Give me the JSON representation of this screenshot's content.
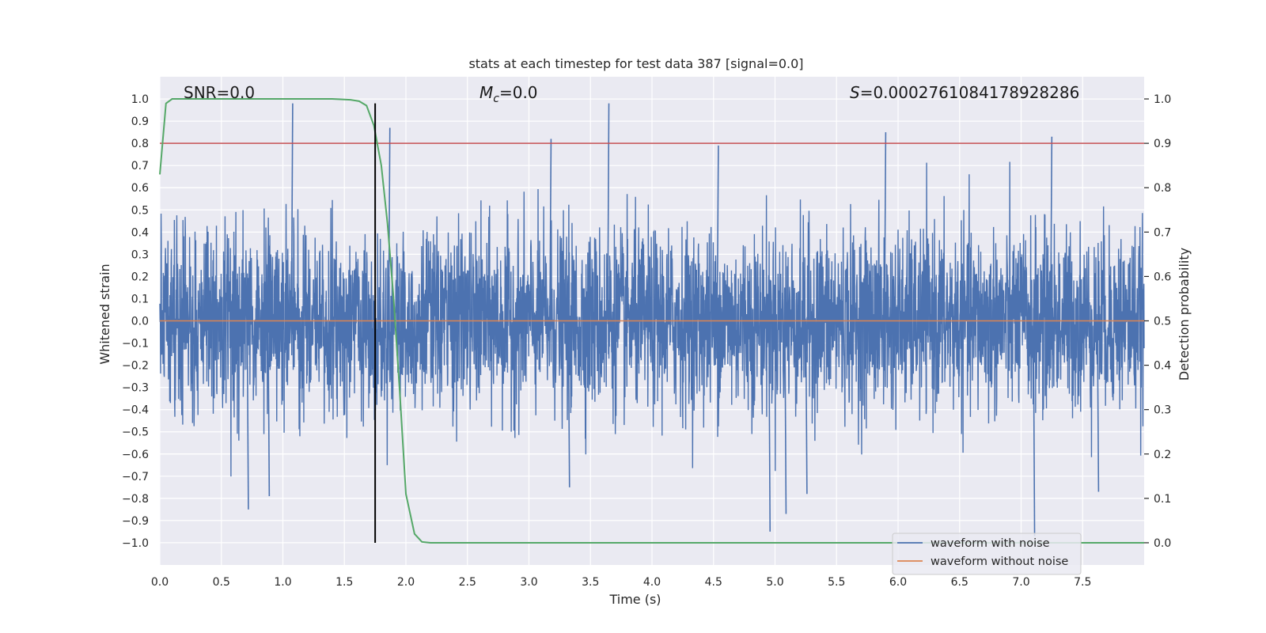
{
  "chart_data": {
    "type": "line",
    "title": "stats at each timestep for test data 387 [signal=0.0]",
    "xlabel": "Time (s)",
    "ylabel": "Whitened strain",
    "y2label": "Detection probability",
    "xlim": [
      0.0,
      8.0
    ],
    "ylim": [
      -1.1,
      1.1
    ],
    "y2lim": [
      -0.05,
      1.05
    ],
    "x_ticks": [
      0.0,
      0.5,
      1.0,
      1.5,
      2.0,
      2.5,
      3.0,
      3.5,
      4.0,
      4.5,
      5.0,
      5.5,
      6.0,
      6.5,
      7.0,
      7.5
    ],
    "x_tick_labels": [
      "0.0",
      "0.5",
      "1.0",
      "1.5",
      "2.0",
      "2.5",
      "3.0",
      "3.5",
      "4.0",
      "4.5",
      "5.0",
      "5.5",
      "6.0",
      "6.5",
      "7.0",
      "7.5"
    ],
    "y_ticks": [
      1.0,
      0.9,
      0.8,
      0.7,
      0.6,
      0.5,
      0.4,
      0.3,
      0.2,
      0.1,
      0.0,
      -0.1,
      -0.2,
      -0.3,
      -0.4,
      -0.5,
      -0.6,
      -0.7,
      -0.8,
      -0.9,
      -1.0
    ],
    "y_tick_labels": [
      "1.0",
      "0.9",
      "0.8",
      "0.7",
      "0.6",
      "0.5",
      "0.4",
      "0.3",
      "0.2",
      "0.1",
      "0.0",
      "−0.1",
      "−0.2",
      "−0.3",
      "−0.4",
      "−0.5",
      "−0.6",
      "−0.7",
      "−0.8",
      "−0.9",
      "−1.0"
    ],
    "y2_ticks": [
      1.0,
      0.9,
      0.8,
      0.7,
      0.6,
      0.5,
      0.4,
      0.3,
      0.2,
      0.1,
      0.0
    ],
    "y2_tick_labels": [
      "1.0",
      "0.9",
      "0.8",
      "0.7",
      "0.6",
      "0.5",
      "0.4",
      "0.3",
      "0.2",
      "0.1",
      "0.0"
    ],
    "grid": true,
    "annotations": {
      "snr": "SNR=0.0",
      "mc_symbol": "M",
      "mc_sub": "c",
      "mc_value": "=0.0",
      "s_symbol": "S",
      "s_value": "=0.00027610841789282​86"
    },
    "series": [
      {
        "name": "waveform with noise",
        "color": "#4c72b0",
        "description": "dense noisy strain trace spanning roughly -0.97 to 0.98",
        "noise_amplitude": 0.2,
        "peak_points": [
          {
            "x": 1.07,
            "y": 0.98
          },
          {
            "x": 3.64,
            "y": 0.98
          },
          {
            "x": 1.86,
            "y": 0.87
          },
          {
            "x": 5.89,
            "y": 0.85
          },
          {
            "x": 7.24,
            "y": 0.83
          },
          {
            "x": 3.17,
            "y": 0.82
          },
          {
            "x": 4.53,
            "y": 0.79
          },
          {
            "x": 4.95,
            "y": -0.95
          },
          {
            "x": 7.1,
            "y": -0.97
          },
          {
            "x": 5.08,
            "y": -0.87
          },
          {
            "x": 0.71,
            "y": -0.85
          },
          {
            "x": 7.62,
            "y": -0.77
          },
          {
            "x": 0.88,
            "y": -0.79
          },
          {
            "x": 3.32,
            "y": -0.75
          },
          {
            "x": 5.25,
            "y": -0.78
          }
        ]
      },
      {
        "name": "waveform without noise",
        "color": "#dd8452",
        "x": [
          0.0,
          8.0
        ],
        "y": [
          0.0,
          0.0
        ]
      },
      {
        "name": "detection probability",
        "color": "#55a868",
        "axis": "right",
        "x": [
          0.0,
          0.05,
          0.1,
          0.2,
          0.5,
          1.0,
          1.4,
          1.55,
          1.62,
          1.68,
          1.74,
          1.8,
          1.85,
          1.9,
          1.95,
          2.0,
          2.07,
          2.13,
          2.2,
          3.0,
          5.0,
          8.0
        ],
        "y": [
          0.83,
          0.99,
          1.0,
          1.0,
          1.0,
          1.0,
          1.0,
          0.998,
          0.995,
          0.985,
          0.94,
          0.85,
          0.72,
          0.55,
          0.34,
          0.11,
          0.02,
          0.002,
          0.0,
          0.0,
          0.0,
          0.0
        ]
      }
    ],
    "threshold_line": {
      "axis": "right",
      "value": 0.9,
      "color": "#c44e52"
    },
    "vertical_marker": {
      "x": 1.75,
      "y_from": -1.0,
      "y_to": 0.98,
      "color": "#000000"
    },
    "legend": {
      "placement": "bottom-right",
      "entries": [
        {
          "label": "waveform with noise",
          "color": "#4c72b0"
        },
        {
          "label": "waveform without noise",
          "color": "#dd8452"
        }
      ]
    },
    "background_color": "#eaeaf2",
    "grid_color": "#ffffff"
  }
}
